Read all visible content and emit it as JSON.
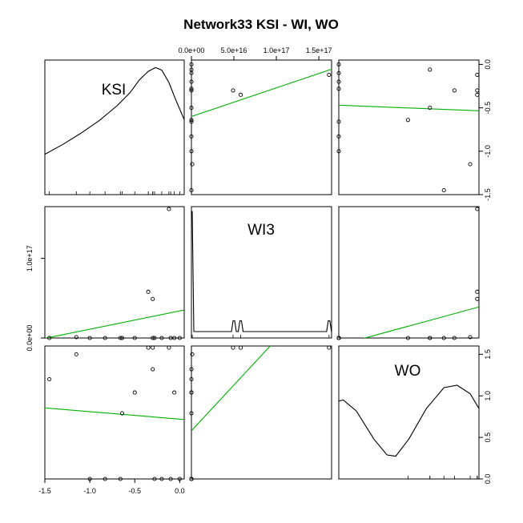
{
  "chart_data": {
    "type": "scatter",
    "title": "Network33 KSI - WI, WO",
    "variables": [
      "KSI",
      "WI3",
      "WO"
    ],
    "ranges": {
      "KSI": [
        -1.5,
        0.05
      ],
      "WI3": [
        0,
        1.65e+17
      ],
      "WO": [
        0,
        1.6
      ]
    },
    "tick_labels": {
      "KSI_bottom": [
        "-1.5",
        "-1.0",
        "-0.5",
        "0.0"
      ],
      "KSI_right": [
        "0.0",
        "-0.5",
        "-1.0",
        "-1.5"
      ],
      "WI3_top": [
        "0.0e+00",
        "5.0e+16",
        "1.0e+17",
        "1.5e+17"
      ],
      "WI3_left": [
        "0.0e+00",
        "1.0e+17"
      ],
      "WO_right": [
        "0.0",
        "0.5",
        "1.0",
        "1.5"
      ]
    },
    "points": [
      {
        "KSI": -1.45,
        "WI3": 0.0,
        "WO": 1.2
      },
      {
        "KSI": -1.15,
        "WI3": 1000000000000000.0,
        "WO": 1.5
      },
      {
        "KSI": -1.0,
        "WI3": 0.0,
        "WO": 0.0
      },
      {
        "KSI": -0.83,
        "WI3": 0.0,
        "WO": 0.0
      },
      {
        "KSI": -0.66,
        "WI3": 0.0,
        "WO": 0.0
      },
      {
        "KSI": -0.64,
        "WI3": 0.0,
        "WO": 0.79
      },
      {
        "KSI": -0.5,
        "WI3": 0.0,
        "WO": 1.04
      },
      {
        "KSI": -0.35,
        "WI3": 5.8e+16,
        "WO": 1.58
      },
      {
        "KSI": -0.3,
        "WI3": 4.9e+16,
        "WO": 1.58
      },
      {
        "KSI": -0.3,
        "WI3": 0.0,
        "WO": 1.32
      },
      {
        "KSI": -0.28,
        "WI3": 0.0,
        "WO": 0.0
      },
      {
        "KSI": -0.2,
        "WI3": 0.0,
        "WO": 0.0
      },
      {
        "KSI": -0.12,
        "WI3": 1.62e+17,
        "WO": 1.58
      },
      {
        "KSI": -0.1,
        "WI3": 0.0,
        "WO": 0.0
      },
      {
        "KSI": -0.06,
        "WI3": 0.0,
        "WO": 1.04
      },
      {
        "KSI": 0.0,
        "WI3": 0.0,
        "WO": 0.0
      }
    ],
    "fit_lines": [
      {
        "y": "WI3",
        "x": "KSI",
        "intercept": 3.4e+16,
        "slope": 2.3e+16
      },
      {
        "y": "KSI",
        "x": "WI3",
        "intercept": -0.6,
        "slope": 3.3e-18
      },
      {
        "y": "WO",
        "x": "KSI",
        "intercept": 0.72,
        "slope": -0.09
      },
      {
        "y": "KSI",
        "x": "WO",
        "intercept": -0.47,
        "slope": -0.04
      },
      {
        "y": "WO",
        "x": "WI3",
        "intercept": 0.58,
        "slope": 1.1e-17
      },
      {
        "y": "WI3",
        "x": "WO",
        "intercept": -9000000000000000.0,
        "slope": 3e+16
      }
    ],
    "densities": {
      "KSI": [
        [
          -1.5,
          0.3
        ],
        [
          -1.3,
          0.38
        ],
        [
          -1.1,
          0.47
        ],
        [
          -0.9,
          0.57
        ],
        [
          -0.7,
          0.69
        ],
        [
          -0.55,
          0.8
        ],
        [
          -0.45,
          0.9
        ],
        [
          -0.35,
          0.97
        ],
        [
          -0.27,
          1.0
        ],
        [
          -0.2,
          0.98
        ],
        [
          -0.12,
          0.88
        ],
        [
          -0.05,
          0.75
        ],
        [
          0.05,
          0.58
        ]
      ],
      "WO": [
        [
          -0.05,
          0.6
        ],
        [
          0.05,
          0.62
        ],
        [
          0.2,
          0.53
        ],
        [
          0.4,
          0.3
        ],
        [
          0.55,
          0.17
        ],
        [
          0.65,
          0.16
        ],
        [
          0.8,
          0.3
        ],
        [
          1.0,
          0.55
        ],
        [
          1.2,
          0.72
        ],
        [
          1.35,
          0.74
        ],
        [
          1.5,
          0.67
        ],
        [
          1.6,
          0.55
        ],
        [
          1.65,
          0.49
        ]
      ],
      "WI3_peaks": [
        [
          0.0,
          1.0
        ],
        [
          5e+16,
          0.09
        ],
        [
          5.8e+16,
          0.09
        ],
        [
          1.62e+17,
          0.09
        ]
      ]
    }
  }
}
